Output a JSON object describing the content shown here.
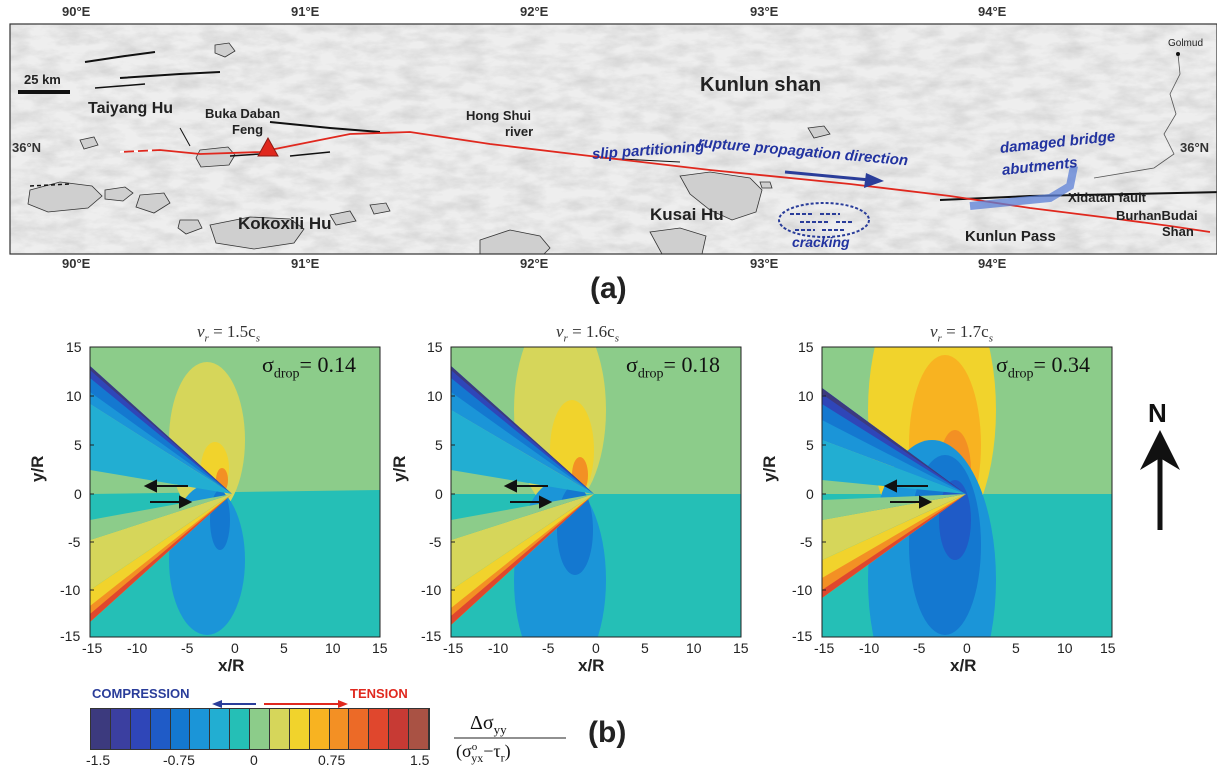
{
  "map": {
    "lon_labels": [
      "90°E",
      "91°E",
      "92°E",
      "93°E",
      "94°E"
    ],
    "lat_label": "36°N",
    "scale_bar": "25 km",
    "places": {
      "kunlun_shan": "Kunlun shan",
      "taiyang_hu": "Taiyang Hu",
      "buka_daban_feng_1": "Buka Daban",
      "buka_daban_feng_2": "Feng",
      "hong_shui_1": "Hong Shui",
      "hong_shui_2": "river",
      "kokoxili_hu": "Kokoxili Hu",
      "kusai_hu": "Kusai Hu",
      "kunlun_pass": "Kunlun Pass",
      "xidatan_fault": "Xidatan fault",
      "burhanbudai_1": "BurhanBudai",
      "burhanbudai_2": "Shan",
      "golmud": "Golmud"
    },
    "annotations": {
      "slip_partitioning": "slip partitioning",
      "rupture_direction": "rupture propagation direction",
      "damaged_1": "damaged bridge",
      "damaged_2": "abutments",
      "cracking": "cracking"
    },
    "panel_letter": "(a)"
  },
  "panels": [
    {
      "title_v": "v",
      "title_sub": "r",
      "title_rest": " = 1.5c",
      "title_sub2": "s",
      "sigma_value": "0.14"
    },
    {
      "title_v": "v",
      "title_sub": "r",
      "title_rest": " = 1.6c",
      "title_sub2": "s",
      "sigma_value": "0.18"
    },
    {
      "title_v": "v",
      "title_sub": "r",
      "title_rest": " = 1.7c",
      "title_sub2": "s",
      "sigma_value": "0.34"
    }
  ],
  "sigma_label": "σ",
  "sigma_sub": "drop",
  "sigma_eq": "=",
  "y_ticks": [
    "15",
    "10",
    "5",
    "0",
    "-5",
    "-10",
    "-15"
  ],
  "x_ticks": [
    "-15",
    "-10",
    "-5",
    "0",
    "5",
    "10",
    "15"
  ],
  "ylabel": "y/R",
  "xlabel": "x/R",
  "north": "N",
  "colorbar": {
    "compression": "COMPRESSION",
    "tension": "TENSION",
    "ticks": [
      "-1.5",
      "-0.75",
      "0",
      "0.75",
      "1.5"
    ],
    "colors": [
      "#3c3a7e",
      "#3b3fa0",
      "#2f46b8",
      "#1f5bc7",
      "#1478d0",
      "#1b95d8",
      "#22aed2",
      "#25bfb6",
      "#8ccc8a",
      "#d6d65a",
      "#f1d32c",
      "#f8b321",
      "#f39024",
      "#ec6a27",
      "#e0472d",
      "#c73a34",
      "#a95244"
    ]
  },
  "colorbar_label": {
    "num": "Δσ",
    "num_sub": "yy",
    "den_open": "(σ",
    "den_sup": "o",
    "den_sub": "yx",
    "den_rest": "−τ",
    "den_sub2": "r",
    "den_close": ")"
  },
  "panel_letter_b": "(b)"
}
